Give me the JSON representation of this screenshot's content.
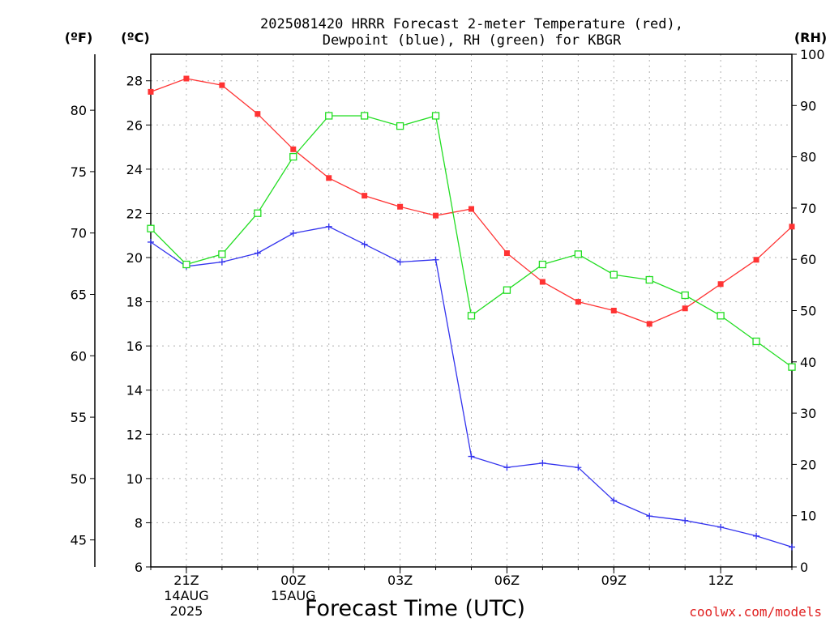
{
  "chart_data": {
    "type": "line",
    "title_line1": "2025081420 HRRR Forecast 2-meter Temperature (red),",
    "title_line2": "Dewpoint (blue), RH (green) for KBGR",
    "xlabel": "Forecast Time (UTC)",
    "credit": "coolwx.com/models",
    "units": {
      "left_f": "(ºF)",
      "left_c": "(ºC)",
      "right_rh": "(RH)"
    },
    "x_hours": [
      20,
      21,
      22,
      23,
      24,
      25,
      26,
      27,
      28,
      29,
      30,
      31,
      32,
      33,
      34,
      35,
      36,
      37,
      38
    ],
    "x_ticks": [
      {
        "hour": 21,
        "lines": [
          "21Z",
          "14AUG",
          "2025"
        ]
      },
      {
        "hour": 24,
        "lines": [
          "00Z",
          "15AUG"
        ]
      },
      {
        "hour": 27,
        "lines": [
          "03Z"
        ]
      },
      {
        "hour": 30,
        "lines": [
          "06Z"
        ]
      },
      {
        "hour": 33,
        "lines": [
          "09Z"
        ]
      },
      {
        "hour": 36,
        "lines": [
          "12Z"
        ]
      }
    ],
    "celsius_axis": {
      "min": 6,
      "max": 29.2,
      "ticks": [
        "6",
        "8",
        "10",
        "12",
        "14",
        "16",
        "18",
        "20",
        "22",
        "24",
        "26",
        "28"
      ]
    },
    "fahrenheit_axis": {
      "ticks": [
        "45",
        "50",
        "55",
        "60",
        "65",
        "70",
        "75",
        "80"
      ]
    },
    "rh_axis": {
      "min": 0,
      "max": 100,
      "ticks": [
        "0",
        "10",
        "20",
        "30",
        "40",
        "50",
        "60",
        "70",
        "80",
        "90",
        "100"
      ]
    },
    "grid": true,
    "series": [
      {
        "name": "Temperature",
        "axis": "celsius",
        "color": "#ff3333",
        "marker": "filled-square",
        "values": [
          27.5,
          28.1,
          27.8,
          26.5,
          24.9,
          23.6,
          22.8,
          22.3,
          21.9,
          22.2,
          20.2,
          18.9,
          18.0,
          17.6,
          17.0,
          17.7,
          18.8,
          19.9,
          21.4
        ]
      },
      {
        "name": "Dewpoint",
        "axis": "celsius",
        "color": "#3333ee",
        "marker": "plus",
        "values": [
          20.7,
          19.6,
          19.8,
          20.2,
          21.1,
          21.4,
          20.6,
          19.8,
          19.9,
          11.0,
          10.5,
          10.7,
          10.5,
          9.0,
          8.3,
          8.1,
          7.8,
          7.4,
          6.9
        ]
      },
      {
        "name": "RH",
        "axis": "rh",
        "color": "#22dd22",
        "marker": "open-square",
        "values": [
          66,
          59,
          61,
          69,
          80,
          88,
          88,
          86,
          88,
          49,
          54,
          59,
          61,
          57,
          56,
          53,
          49,
          44,
          39
        ]
      }
    ]
  }
}
